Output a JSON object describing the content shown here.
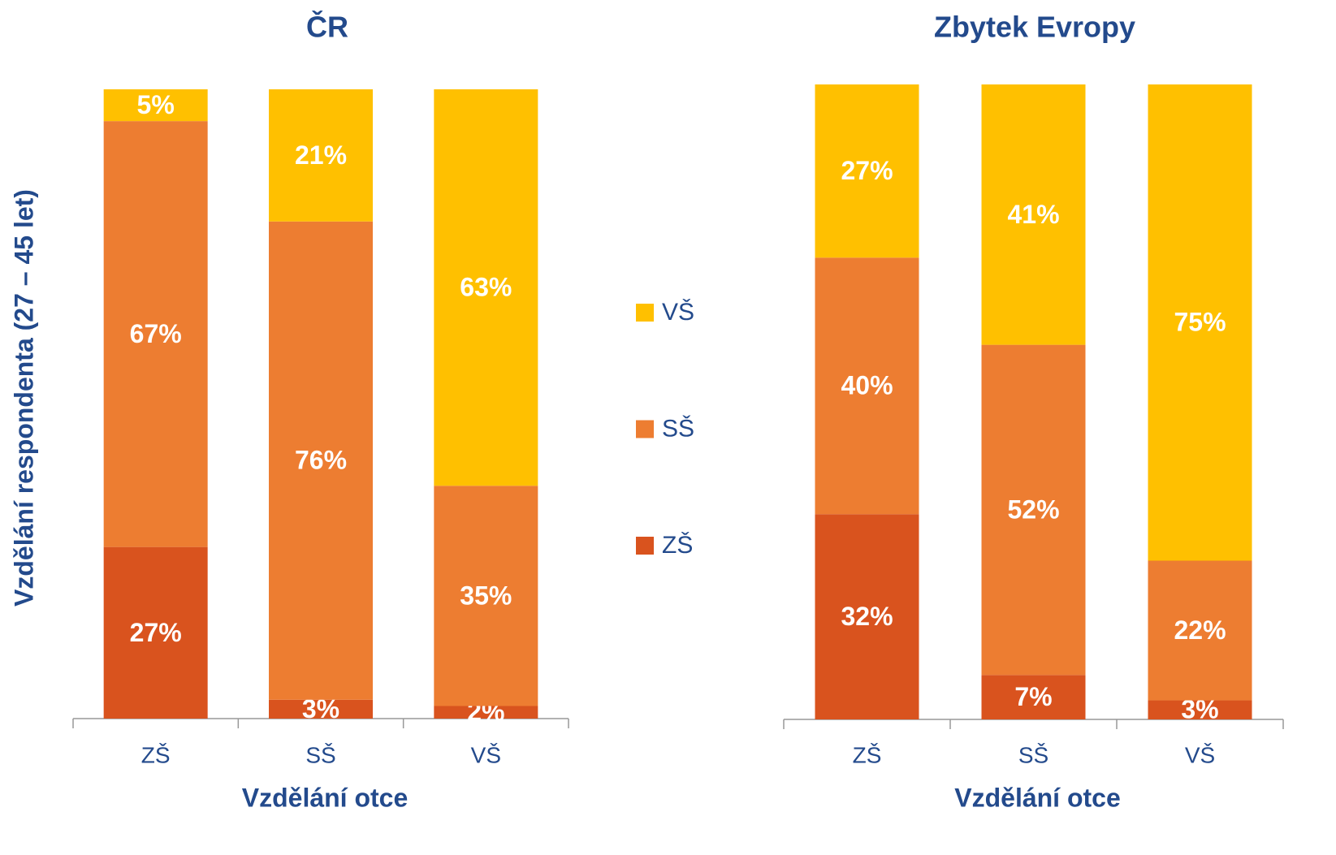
{
  "chart_data": [
    {
      "type": "bar",
      "stacked": true,
      "title": "ČR",
      "x_label": "Vzdělání otce",
      "y_label": "Vzdělání respondenta (27 – 45 let)",
      "categories": [
        "ZŠ",
        "SŠ",
        "VŠ"
      ],
      "series": [
        {
          "name": "ZŠ",
          "color": "#d9531e",
          "values": [
            27,
            3,
            2
          ],
          "value_labels": [
            "27%",
            "3%",
            "2%"
          ]
        },
        {
          "name": "SŠ",
          "color": "#ed7d31",
          "values": [
            67,
            76,
            35
          ],
          "value_labels": [
            "67%",
            "76%",
            "35%"
          ]
        },
        {
          "name": "VŠ",
          "color": "#ffc000",
          "values": [
            5,
            21,
            63
          ],
          "value_labels": [
            "5%",
            "21%",
            "63%"
          ]
        }
      ]
    },
    {
      "type": "bar",
      "stacked": true,
      "title": "Zbytek Evropy",
      "x_label": "Vzdělání otce",
      "categories": [
        "ZŠ",
        "SŠ",
        "VŠ"
      ],
      "series": [
        {
          "color": "#d9531e",
          "values": [
            32,
            7,
            3
          ],
          "value_labels": [
            "32%",
            "7%",
            "3%"
          ]
        },
        {
          "color": "#ed7d31",
          "values": [
            40,
            52,
            22
          ],
          "value_labels": [
            "40%",
            "52%",
            "22%"
          ]
        },
        {
          "color": "#ffc000",
          "values": [
            27,
            41,
            75
          ],
          "value_labels": [
            "27%",
            "41%",
            "75%"
          ]
        }
      ]
    }
  ]
}
